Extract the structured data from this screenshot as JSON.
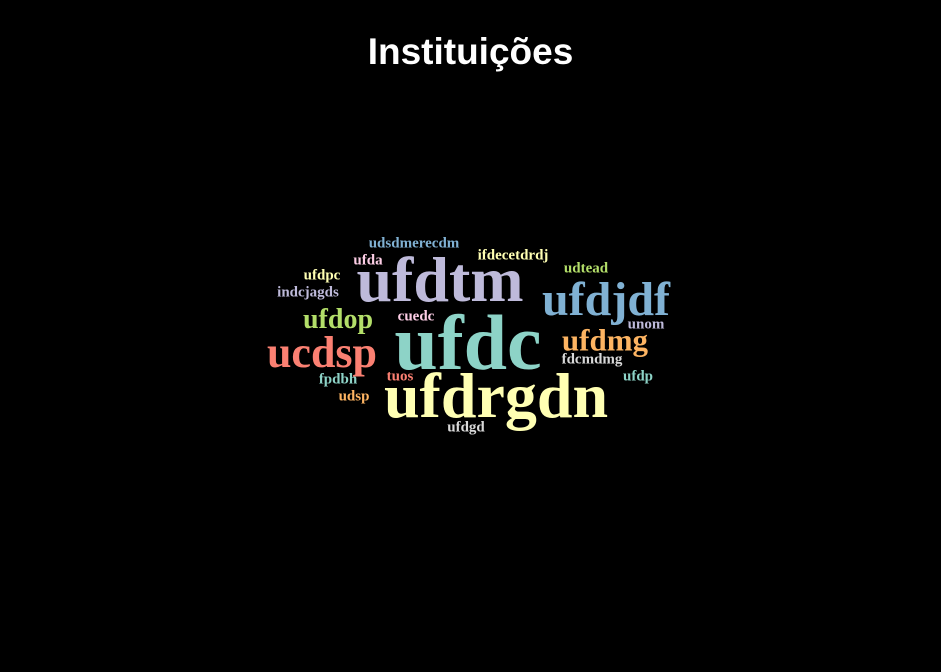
{
  "title": "Instituições",
  "words": [
    {
      "text": "ufdc",
      "color": "#8dd3c7"
    },
    {
      "text": "ufdrgdn",
      "color": "#ffffb3"
    },
    {
      "text": "ufdtm",
      "color": "#bebada"
    },
    {
      "text": "ucdsp",
      "color": "#fb8072"
    },
    {
      "text": "ufdjdf",
      "color": "#80b1d3"
    },
    {
      "text": "ufdmg",
      "color": "#fdb462"
    },
    {
      "text": "ufdop",
      "color": "#b3de69"
    },
    {
      "text": "udsdmerecdm",
      "color": "#80b1d3"
    },
    {
      "text": "ifdecetdrdj",
      "color": "#ffffb3"
    },
    {
      "text": "ufda",
      "color": "#fccde5"
    },
    {
      "text": "udtead",
      "color": "#b3de69"
    },
    {
      "text": "ufdpc",
      "color": "#ffffb3"
    },
    {
      "text": "indcjagds",
      "color": "#bebada"
    },
    {
      "text": "cuedc",
      "color": "#fccde5"
    },
    {
      "text": "unom",
      "color": "#bebada"
    },
    {
      "text": "fdcmdmg",
      "color": "#d9d9d9"
    },
    {
      "text": "fpdbh",
      "color": "#8dd3c7"
    },
    {
      "text": "tuos",
      "color": "#fb8072"
    },
    {
      "text": "ufdp",
      "color": "#8dd3c7"
    },
    {
      "text": "udsp",
      "color": "#fdb462"
    },
    {
      "text": "ufdgd",
      "color": "#d9d9d9"
    }
  ]
}
